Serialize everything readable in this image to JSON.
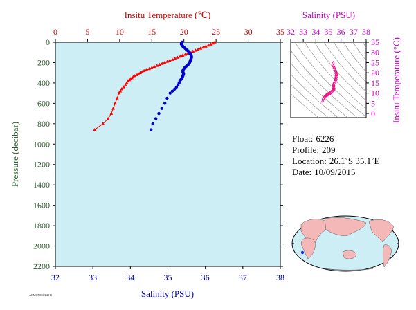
{
  "main_chart": {
    "top_axis_title": "Insitu Temperature (℃)",
    "bottom_axis_title": "Salinity (PSU)",
    "left_axis_title": "Pressure (decibar)",
    "temp_ticks": [
      "0",
      "5",
      "10",
      "15",
      "20",
      "25",
      "30",
      "35"
    ],
    "sal_ticks": [
      "32",
      "33",
      "34",
      "35",
      "36",
      "37",
      "38"
    ],
    "pres_ticks": [
      "0",
      "200",
      "400",
      "600",
      "800",
      "1000",
      "1200",
      "1400",
      "1600",
      "1800",
      "2000",
      "2200"
    ],
    "small_label": "AOML/NOAA 2015",
    "colors": {
      "temperature": "#ff0000",
      "salinity": "#0000cc",
      "plot_bg": "#cdeef5",
      "axis_text": "#2a5a2a",
      "temp_axis": "#cc0000",
      "sal_axis": "#0000aa"
    }
  },
  "ts_chart": {
    "top_axis_title": "Salinity (PSU)",
    "right_axis_title": "Insitu Temperature (°C)",
    "sal_ticks": [
      "32",
      "33",
      "34",
      "35",
      "36",
      "37",
      "38"
    ],
    "temp_ticks": [
      "0",
      "5",
      "10",
      "15",
      "20",
      "25",
      "30",
      "35"
    ],
    "colors": {
      "axis": "#cc00cc",
      "points": "#ee1188"
    }
  },
  "info": {
    "float_label": "Float:",
    "float_value": "6226",
    "profile_label": "Profile:",
    "profile_value": "209",
    "location_label": "Location:",
    "location_value": "26.1˚S  35.1˚E",
    "date_label": "Date:",
    "date_value": "10/09/2015"
  },
  "chart_data": [
    {
      "type": "line",
      "title": "",
      "x_top_label": "Insitu Temperature (℃)",
      "x_bottom_label": "Salinity (PSU)",
      "ylabel": "Pressure (decibar)",
      "temp_range": [
        0,
        35
      ],
      "sal_range": [
        32,
        38
      ],
      "pressure_range": [
        0,
        2200
      ],
      "y_inverted": true,
      "series": [
        {
          "name": "Insitu Temperature",
          "axis": "top",
          "marker": "triangle",
          "color": "#ff0000",
          "points": [
            [
              24.8,
              0
            ],
            [
              24.5,
              10
            ],
            [
              24.2,
              20
            ],
            [
              23.8,
              30
            ],
            [
              23.4,
              40
            ],
            [
              23.0,
              50
            ],
            [
              22.6,
              60
            ],
            [
              22.2,
              70
            ],
            [
              21.8,
              80
            ],
            [
              21.4,
              90
            ],
            [
              21.0,
              100
            ],
            [
              20.6,
              110
            ],
            [
              20.2,
              120
            ],
            [
              19.8,
              130
            ],
            [
              19.4,
              140
            ],
            [
              19.0,
              150
            ],
            [
              18.6,
              160
            ],
            [
              18.2,
              170
            ],
            [
              17.8,
              180
            ],
            [
              17.4,
              190
            ],
            [
              17.0,
              200
            ],
            [
              16.6,
              210
            ],
            [
              16.2,
              220
            ],
            [
              15.8,
              230
            ],
            [
              15.4,
              240
            ],
            [
              15.0,
              250
            ],
            [
              14.6,
              260
            ],
            [
              14.2,
              270
            ],
            [
              13.8,
              280
            ],
            [
              13.5,
              290
            ],
            [
              13.2,
              300
            ],
            [
              12.9,
              310
            ],
            [
              12.6,
              320
            ],
            [
              12.3,
              330
            ],
            [
              12.1,
              340
            ],
            [
              11.9,
              350
            ],
            [
              11.7,
              360
            ],
            [
              11.5,
              370
            ],
            [
              11.3,
              380
            ],
            [
              11.1,
              400
            ],
            [
              10.9,
              420
            ],
            [
              10.6,
              440
            ],
            [
              10.3,
              460
            ],
            [
              10.1,
              480
            ],
            [
              9.9,
              500
            ],
            [
              9.6,
              550
            ],
            [
              9.3,
              600
            ],
            [
              9.0,
              650
            ],
            [
              8.7,
              700
            ],
            [
              8.2,
              750
            ],
            [
              7.4,
              800
            ],
            [
              6.1,
              860
            ]
          ]
        },
        {
          "name": "Salinity",
          "axis": "bottom",
          "marker": "circle",
          "color": "#0000cc",
          "points": [
            [
              35.38,
              0
            ],
            [
              35.36,
              10
            ],
            [
              35.36,
              20
            ],
            [
              35.38,
              30
            ],
            [
              35.4,
              40
            ],
            [
              35.43,
              50
            ],
            [
              35.46,
              60
            ],
            [
              35.49,
              70
            ],
            [
              35.52,
              80
            ],
            [
              35.55,
              90
            ],
            [
              35.57,
              100
            ],
            [
              35.59,
              110
            ],
            [
              35.61,
              120
            ],
            [
              35.62,
              130
            ],
            [
              35.63,
              140
            ],
            [
              35.63,
              150
            ],
            [
              35.62,
              160
            ],
            [
              35.61,
              170
            ],
            [
              35.6,
              180
            ],
            [
              35.59,
              190
            ],
            [
              35.58,
              200
            ],
            [
              35.56,
              210
            ],
            [
              35.54,
              220
            ],
            [
              35.51,
              230
            ],
            [
              35.48,
              240
            ],
            [
              35.45,
              250
            ],
            [
              35.43,
              260
            ],
            [
              35.41,
              270
            ],
            [
              35.4,
              280
            ],
            [
              35.4,
              290
            ],
            [
              35.41,
              300
            ],
            [
              35.42,
              310
            ],
            [
              35.41,
              320
            ],
            [
              35.4,
              330
            ],
            [
              35.39,
              340
            ],
            [
              35.38,
              350
            ],
            [
              35.36,
              360
            ],
            [
              35.34,
              370
            ],
            [
              35.32,
              380
            ],
            [
              35.3,
              400
            ],
            [
              35.27,
              420
            ],
            [
              35.23,
              440
            ],
            [
              35.18,
              460
            ],
            [
              35.12,
              480
            ],
            [
              35.06,
              500
            ],
            [
              34.98,
              550
            ],
            [
              34.92,
              600
            ],
            [
              34.84,
              650
            ],
            [
              34.76,
              700
            ],
            [
              34.68,
              750
            ],
            [
              34.6,
              800
            ],
            [
              34.55,
              860
            ]
          ]
        }
      ]
    },
    {
      "type": "scatter",
      "title": "",
      "xlabel": "Salinity (PSU)",
      "ylabel": "Insitu Temperature (°C)",
      "xlim": [
        32,
        38
      ],
      "ylim": [
        -2,
        35
      ],
      "series": [
        {
          "name": "",
          "points": [
            [
              35.38,
              24.8
            ],
            [
              35.4,
              23.4
            ],
            [
              35.46,
              22.6
            ],
            [
              35.52,
              21.8
            ],
            [
              35.57,
              21.0
            ],
            [
              35.61,
              20.2
            ],
            [
              35.63,
              19.4
            ],
            [
              35.63,
              19.0
            ],
            [
              35.61,
              18.2
            ],
            [
              35.59,
              17.4
            ],
            [
              35.56,
              16.6
            ],
            [
              35.51,
              15.8
            ],
            [
              35.45,
              15.0
            ],
            [
              35.41,
              14.2
            ],
            [
              35.4,
              13.5
            ],
            [
              35.42,
              12.9
            ],
            [
              35.4,
              12.3
            ],
            [
              35.38,
              11.9
            ],
            [
              35.34,
              11.5
            ],
            [
              35.3,
              11.1
            ],
            [
              35.23,
              10.6
            ],
            [
              35.12,
              10.1
            ],
            [
              35.06,
              9.9
            ],
            [
              34.98,
              9.6
            ],
            [
              34.92,
              9.3
            ],
            [
              34.84,
              9.0
            ],
            [
              34.76,
              8.7
            ],
            [
              34.68,
              8.2
            ],
            [
              34.6,
              7.4
            ],
            [
              34.55,
              6.1
            ]
          ]
        }
      ]
    }
  ]
}
